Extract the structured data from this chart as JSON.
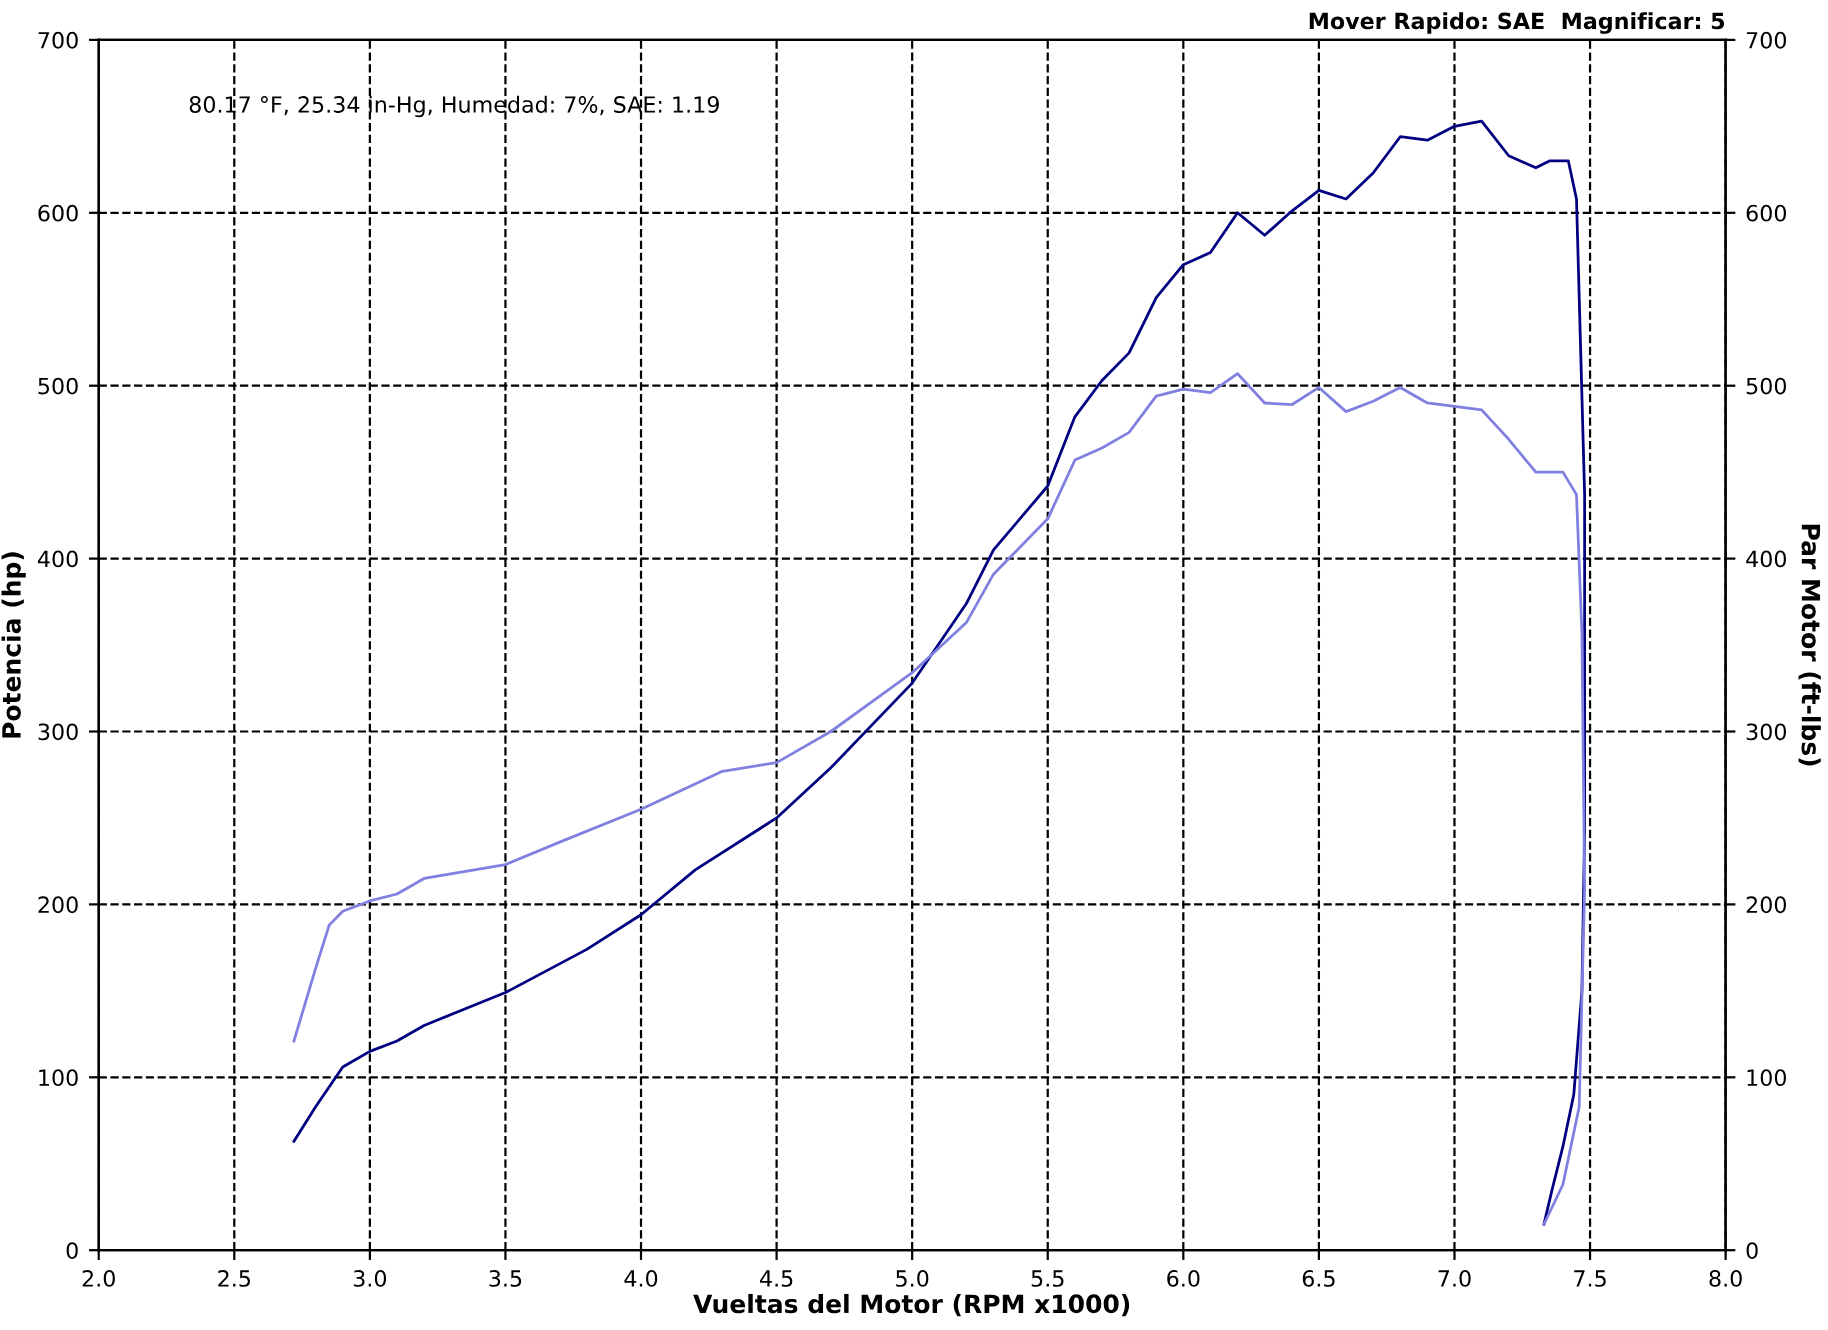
{
  "chart_data": {
    "type": "line",
    "xlabel": "Vueltas del Motor (RPM x1000)",
    "ylabel": "Potencia (hp)",
    "y2label": "Par Motor (ft-lbs)",
    "annotations": [
      "80.17 °F, 25.34 in-Hg, Humedad: 7%, SAE: 1.19",
      "Mover Rapido: SAE  Magnificar: 5"
    ],
    "xlim": [
      2.0,
      8.0
    ],
    "xticks": [
      {
        "value": 2,
        "label": "2.0"
      },
      2.5,
      {
        "value": 3,
        "label": "3.0"
      },
      3.5,
      {
        "value": 4,
        "label": "4.0"
      },
      4.5,
      {
        "value": 5,
        "label": "5.0"
      },
      5.5,
      {
        "value": 6,
        "label": "6.0"
      },
      6.5,
      {
        "value": 7,
        "label": "7.0"
      },
      7.5,
      {
        "value": 8,
        "label": "8.0"
      }
    ],
    "ylim": [
      0,
      700
    ],
    "yticks": [
      0,
      100,
      200,
      300,
      400,
      500,
      600,
      700
    ],
    "y2lim": [
      0,
      700
    ],
    "y2ticks": [
      0,
      100,
      200,
      300,
      400,
      500,
      600,
      700
    ],
    "grid": true,
    "line_style": "solid",
    "series": [
      {
        "color": "#000080",
        "axis": "y",
        "x": [
          2.72,
          2.8,
          2.9,
          3.0,
          3.1,
          3.2,
          3.5,
          3.8,
          4.0,
          4.2,
          4.5,
          4.7,
          5.0,
          5.2,
          5.3,
          5.5,
          5.6,
          5.7,
          5.8,
          5.9,
          6.0,
          6.1,
          6.2,
          6.3,
          6.4,
          6.5,
          6.6,
          6.7,
          6.8,
          6.9,
          7.0,
          7.1,
          7.2,
          7.3,
          7.35,
          7.42,
          7.45,
          7.48,
          7.48,
          7.47,
          7.44,
          7.4,
          7.36,
          7.33
        ],
        "values": [
          63,
          83,
          106,
          115,
          121,
          130,
          149,
          174,
          194,
          220,
          250,
          279,
          328,
          374,
          405,
          442,
          482,
          503,
          519,
          551,
          570,
          577,
          600,
          587,
          601,
          613,
          608,
          623,
          644,
          642,
          650,
          653,
          633,
          626,
          630,
          630,
          608,
          437,
          243,
          150,
          90,
          60,
          35,
          15
        ]
      },
      {
        "color": "#8080e0",
        "axis": "y2",
        "x": [
          2.72,
          2.8,
          2.85,
          2.9,
          3.0,
          3.1,
          3.2,
          3.5,
          3.7,
          4.0,
          4.3,
          4.5,
          4.7,
          5.0,
          5.2,
          5.3,
          5.5,
          5.6,
          5.7,
          5.8,
          5.9,
          6.0,
          6.1,
          6.2,
          6.3,
          6.4,
          6.5,
          6.6,
          6.7,
          6.8,
          6.9,
          7.0,
          7.1,
          7.2,
          7.3,
          7.4,
          7.45,
          7.47,
          7.48,
          7.46,
          7.4,
          7.33
        ],
        "values": [
          121,
          163,
          188,
          196,
          202,
          206,
          215,
          223,
          236,
          255,
          277,
          282,
          300,
          334,
          363,
          391,
          423,
          457,
          464,
          473,
          494,
          498,
          496,
          507,
          490,
          489,
          499,
          485,
          491,
          499,
          490,
          488,
          486,
          469,
          450,
          450,
          437,
          357,
          209,
          83,
          38,
          15
        ]
      }
    ]
  }
}
